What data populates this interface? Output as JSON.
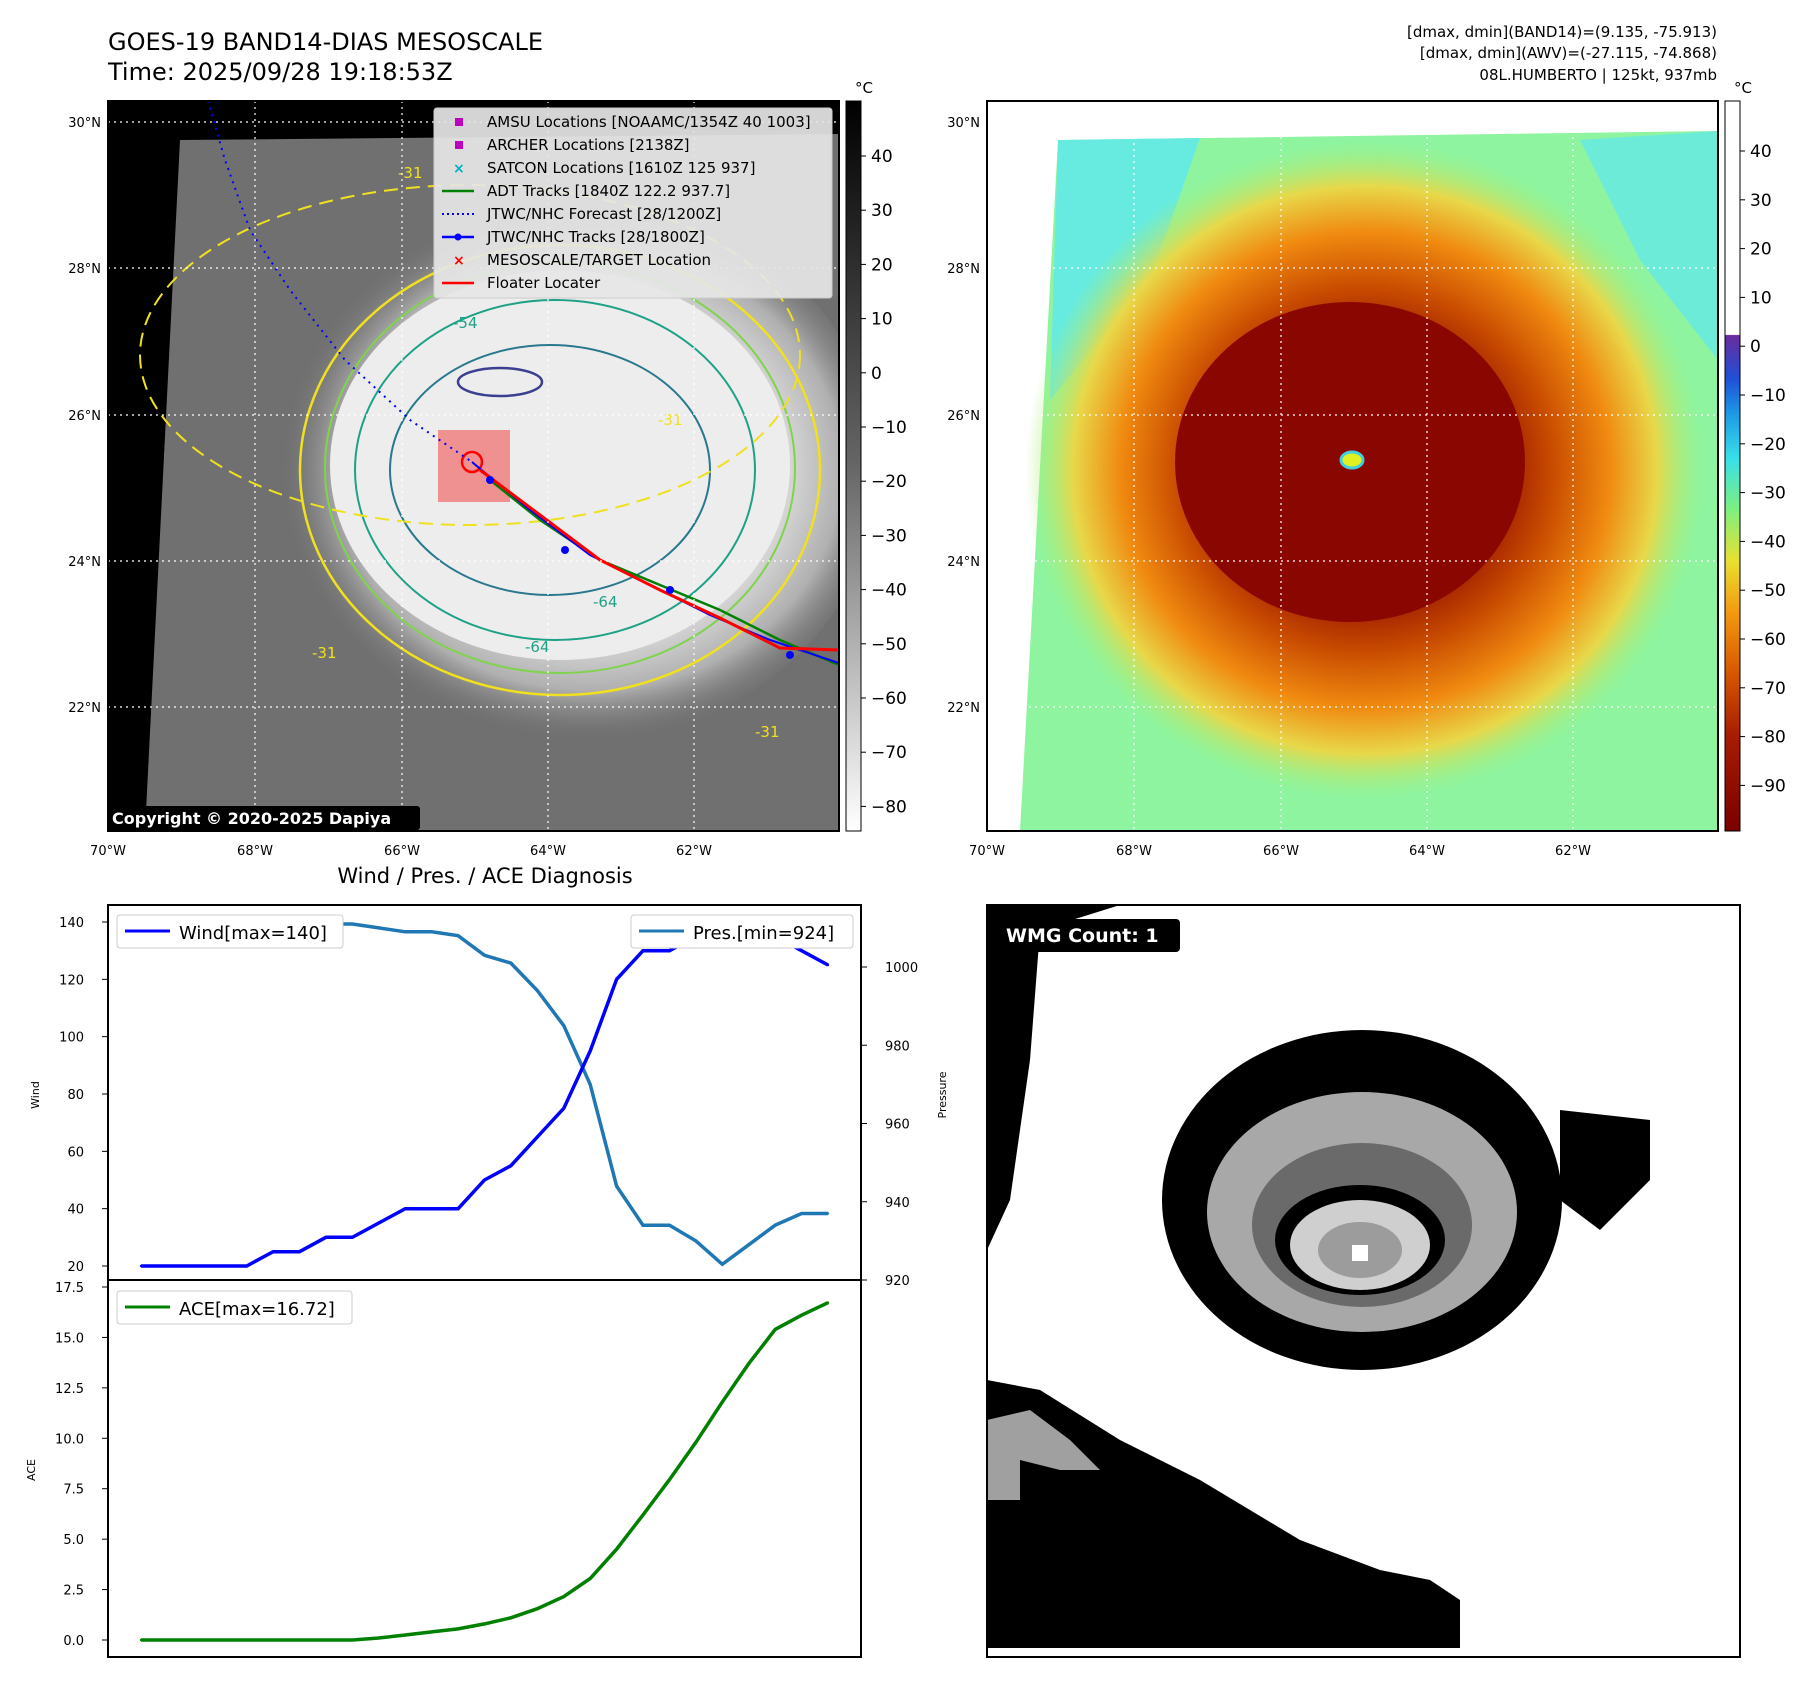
{
  "header": {
    "title_line1": "GOES-19 BAND14-DIAS MESOSCALE",
    "title_line2": "Time: 2025/09/28 19:18:53Z",
    "info_line1": "[dmax, dmin](BAND14)=(9.135, -75.913)",
    "info_line2": "[dmax, dmin](AWV)=(-27.115, -74.868)",
    "info_line3": "08L.HUMBERTO | 125kt, 937mb"
  },
  "map_axes": {
    "lat_labels": [
      "30°N",
      "28°N",
      "26°N",
      "24°N",
      "22°N"
    ],
    "lon_labels": [
      "70°W",
      "68°W",
      "66°W",
      "64°W",
      "62°W"
    ]
  },
  "ir_panel": {
    "legend": [
      {
        "label": "AMSU Locations [NOAAMC/1354Z 40 1003]",
        "marker": "square",
        "color": "#c000c0"
      },
      {
        "label": "ARCHER Locations [2138Z]",
        "marker": "square",
        "color": "#c000c0"
      },
      {
        "label": "SATCON Locations [1610Z 125 937]",
        "marker": "x",
        "color": "#00b0c0"
      },
      {
        "label": "ADT Tracks [1840Z 122.2 937.7]",
        "marker": "line",
        "color": "#008000"
      },
      {
        "label": "JTWC/NHC Forecast [28/1200Z]",
        "marker": "dotted",
        "color": "#0000ff"
      },
      {
        "label": "JTWC/NHC Tracks [28/1800Z]",
        "marker": "line-dot",
        "color": "#0000ff"
      },
      {
        "label": "MESOSCALE/TARGET Location",
        "marker": "x",
        "color": "#ff0000"
      },
      {
        "label": "Floater Locater",
        "marker": "line",
        "color": "#ff0000"
      }
    ],
    "contour_labels": [
      "-54",
      "-31",
      "-31",
      "-64",
      "-64",
      "-31",
      "-31"
    ],
    "colorbar_unit": "°C",
    "colorbar_ticks": [
      "40",
      "30",
      "20",
      "10",
      "0",
      "−10",
      "−20",
      "−30",
      "−40",
      "−50",
      "−60",
      "−70",
      "−80"
    ],
    "copyright": "Copyright © 2020-2025 Dapiya"
  },
  "awv_panel": {
    "colorbar_unit": "°C",
    "colorbar_ticks": [
      "40",
      "30",
      "20",
      "10",
      "0",
      "−10",
      "−20",
      "−30",
      "−40",
      "−50",
      "−60",
      "−70",
      "−80",
      "−90"
    ]
  },
  "diag_panel": {
    "title": "Wind / Pres. / ACE Diagnosis",
    "wind_ylabel": "Wind",
    "pres_ylabel": "Pressure",
    "ace_ylabel": "ACE",
    "wind_ticks": [
      "140",
      "120",
      "100",
      "80",
      "60",
      "40",
      "20"
    ],
    "pres_ticks": [
      "1000",
      "980",
      "960",
      "940",
      "920"
    ],
    "ace_ticks": [
      "17.5",
      "15.0",
      "12.5",
      "10.0",
      "7.5",
      "5.0",
      "2.5",
      "0.0"
    ]
  },
  "wmg_panel": {
    "badge": "WMG Count: 1"
  },
  "chart_data": [
    {
      "type": "line",
      "title": "Wind / Pres. / ACE Diagnosis",
      "xlabel": "",
      "ylabel": "Wind",
      "ylim": [
        18,
        145
      ],
      "x": [
        0,
        1,
        2,
        3,
        4,
        5,
        6,
        7,
        8,
        9,
        10,
        11,
        12,
        13,
        14,
        15,
        16,
        17,
        18,
        19,
        20,
        21,
        22,
        23,
        24,
        25,
        26
      ],
      "series": [
        {
          "name": "Wind[max=140]",
          "color": "#0000ff",
          "values": [
            20,
            20,
            20,
            20,
            20,
            25,
            25,
            30,
            30,
            35,
            40,
            40,
            40,
            50,
            55,
            65,
            75,
            95,
            120,
            130,
            130,
            135,
            140,
            140,
            135,
            130,
            125
          ]
        }
      ]
    },
    {
      "type": "line",
      "ylabel": "Pressure",
      "ylim": [
        920,
        1014
      ],
      "x": [
        0,
        1,
        2,
        3,
        4,
        5,
        6,
        7,
        8,
        9,
        10,
        11,
        12,
        13,
        14,
        15,
        16,
        17,
        18,
        19,
        20,
        21,
        22,
        23,
        24,
        25,
        26
      ],
      "series": [
        {
          "name": "Pres.[min=924]",
          "color": "#1f77b4",
          "values": [
            1012,
            1012,
            1012,
            1012,
            1011,
            1011,
            1011,
            1011,
            1011,
            1010,
            1009,
            1009,
            1008,
            1003,
            1001,
            994,
            985,
            970,
            944,
            934,
            934,
            930,
            924,
            929,
            934,
            937,
            937
          ]
        }
      ]
    },
    {
      "type": "area",
      "ylabel": "ACE",
      "ylim": [
        -0.6,
        17.5
      ],
      "x": [
        0,
        1,
        2,
        3,
        4,
        5,
        6,
        7,
        8,
        9,
        10,
        11,
        12,
        13,
        14,
        15,
        16,
        17,
        18,
        19,
        20,
        21,
        22,
        23,
        24,
        25,
        26
      ],
      "series": [
        {
          "name": "ACE[max=16.72]",
          "color": "#008000",
          "values": [
            0,
            0,
            0,
            0,
            0,
            0,
            0,
            0,
            0,
            0.1,
            0.25,
            0.4,
            0.55,
            0.8,
            1.1,
            1.55,
            2.15,
            3.05,
            4.5,
            6.2,
            7.95,
            9.8,
            11.8,
            13.7,
            15.4,
            16.1,
            16.72
          ]
        }
      ]
    }
  ]
}
